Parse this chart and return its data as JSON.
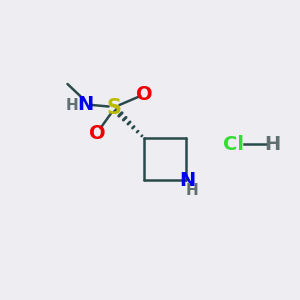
{
  "bg_color": "#eeeef2",
  "atom_colors": {
    "C": "#2a4a4a",
    "H": "#607070",
    "N": "#0000ee",
    "O": "#ee0000",
    "S": "#bbbb00",
    "Cl": "#33dd33"
  },
  "bond_color": "#2a4a4a",
  "fs_large": 14,
  "fs_small": 11,
  "lw": 1.8
}
